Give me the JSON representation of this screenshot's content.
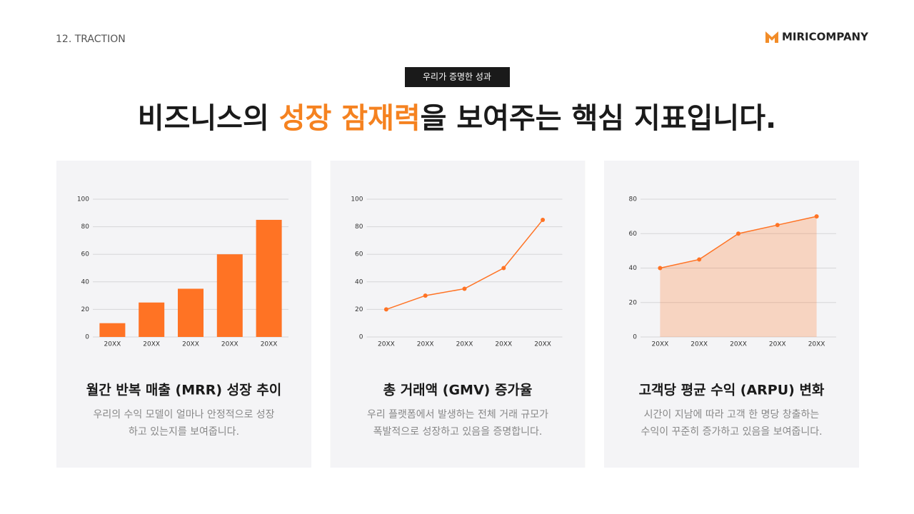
{
  "header": {
    "section": "12. TRACTION",
    "logo": "MIRICOMPANY",
    "badge": "우리가 증명한 성과",
    "headline": [
      "비즈니스의 ",
      "성장 잠재력",
      "을 보여주는 핵심 지표입니다."
    ]
  },
  "chart_data": [
    {
      "type": "bar",
      "title": "월간 반복 매출 (MRR) 성장 추이",
      "subtitle": [
        "우리의 수익 모델이 얼마나 안정적으로 성장",
        "하고 있는지를 보여줍니다."
      ],
      "categories": [
        "20XX",
        "20XX",
        "20XX",
        "20XX",
        "20XX"
      ],
      "values": [
        10,
        25,
        35,
        60,
        85
      ],
      "color": "#ff7324",
      "ylim": [
        0,
        100
      ],
      "yticks": [
        0,
        20,
        40,
        60,
        80,
        100
      ],
      "grid": true
    },
    {
      "type": "line",
      "title": "총 거래액 (GMV) 증가율",
      "subtitle": [
        "우리 플랫폼에서 발생하는 전체 거래 규모가",
        "폭발적으로 성장하고 있음을 증명합니다."
      ],
      "categories": [
        "20XX",
        "20XX",
        "20XX",
        "20XX",
        "20XX"
      ],
      "values": [
        20,
        30,
        35,
        50,
        85
      ],
      "color": "#ff7324",
      "ylim": [
        0,
        100
      ],
      "yticks": [
        0,
        20,
        40,
        60,
        80,
        100
      ],
      "grid": true
    },
    {
      "type": "area",
      "title": "고객당 평균 수익 (ARPU) 변화",
      "subtitle": [
        "시간이 지남에 따라 고객 한 명당 창출하는",
        "수익이 꾸준히 증가하고 있음을 보여줍니다."
      ],
      "categories": [
        "20XX",
        "20XX",
        "20XX",
        "20XX",
        "20XX"
      ],
      "values": [
        40,
        45,
        60,
        65,
        70
      ],
      "color": "#ff7324",
      "ylim": [
        0,
        80
      ],
      "yticks": [
        0,
        20,
        40,
        60,
        80
      ],
      "grid": true
    }
  ]
}
